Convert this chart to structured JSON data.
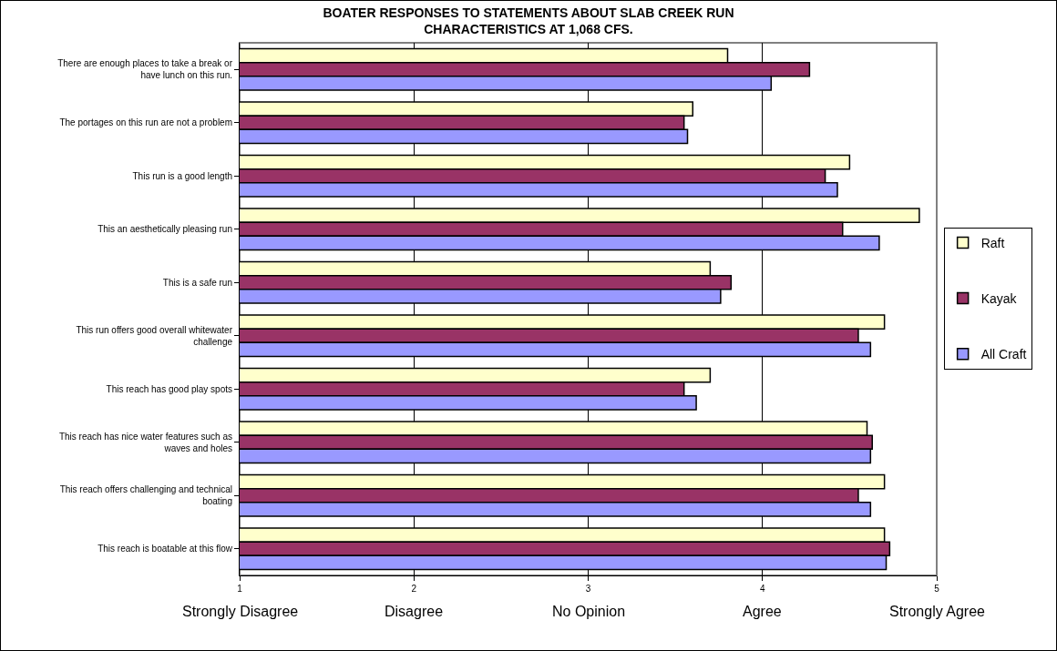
{
  "chart_data": {
    "type": "bar",
    "orientation": "horizontal",
    "title": "BOATER RESPONSES TO STATEMENTS ABOUT SLAB CREEK RUN CHARACTERISTICS AT 1,068 CFS.",
    "categories": [
      "There are enough places to take a break or have lunch on this run.",
      "The portages on this run are not a problem",
      "This run is a good length",
      "This an aesthetically pleasing run",
      "This is a safe run",
      "This run offers good overall whitewater challenge",
      "This reach has good play spots",
      "This reach has nice water features such as waves and holes",
      "This reach offers challenging and technical boating",
      "This reach is boatable at this flow"
    ],
    "series": [
      {
        "name": "Raft",
        "color": "#ffffcc",
        "values": [
          3.8,
          3.6,
          4.5,
          4.9,
          3.7,
          4.7,
          3.7,
          4.6,
          4.7,
          4.7
        ]
      },
      {
        "name": "Kayak",
        "color": "#993366",
        "values": [
          4.27,
          3.55,
          4.36,
          4.46,
          3.82,
          4.55,
          3.55,
          4.63,
          4.55,
          4.73
        ]
      },
      {
        "name": "All Craft",
        "color": "#9999ff",
        "values": [
          4.05,
          3.57,
          4.43,
          4.67,
          3.76,
          4.62,
          3.62,
          4.62,
          4.62,
          4.71
        ]
      }
    ],
    "xlim": [
      1,
      5
    ],
    "xticks": [
      1,
      2,
      3,
      4,
      5
    ],
    "grid": "x",
    "legend": "right",
    "annotations": [
      "Strongly Disagree",
      "Disagree",
      "No Opinion",
      "Agree",
      "Strongly Agree"
    ]
  }
}
